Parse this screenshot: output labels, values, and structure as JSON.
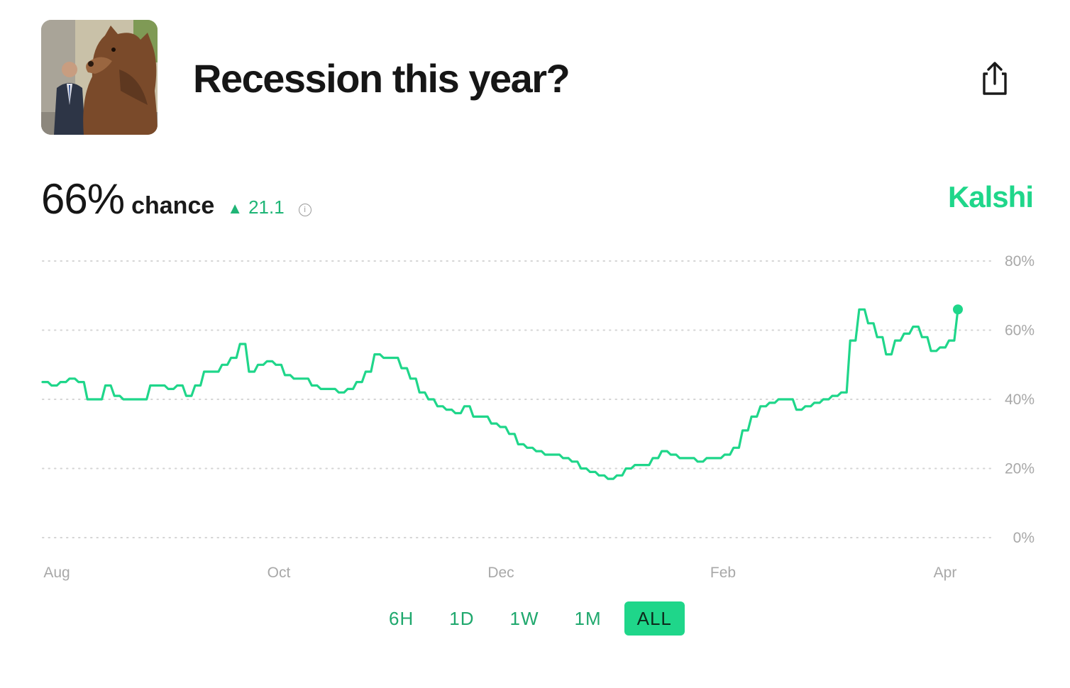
{
  "header": {
    "title": "Recession this year?",
    "thumbnail_icon": "bear-statue-photo",
    "share_icon": "share-icon"
  },
  "summary": {
    "probability": "66%",
    "chance_label": "chance",
    "delta_icon": "triangle-up-icon",
    "delta_value": "21.1",
    "info_icon": "info-icon",
    "brand": "Kalshi",
    "accent_color": "#1fd68a"
  },
  "tabs": [
    {
      "label": "6H",
      "active": false
    },
    {
      "label": "1D",
      "active": false
    },
    {
      "label": "1W",
      "active": false
    },
    {
      "label": "1M",
      "active": false
    },
    {
      "label": "ALL",
      "active": true
    }
  ],
  "chart_data": {
    "type": "line",
    "title": "",
    "xlabel": "",
    "ylabel": "",
    "ylim": [
      0,
      80
    ],
    "y_ticks": [
      80,
      60,
      40,
      20,
      0
    ],
    "y_tick_labels": [
      "80%",
      "60%",
      "40%",
      "20%",
      "0%"
    ],
    "x_tick_labels": [
      "Aug",
      "Oct",
      "Dec",
      "Feb",
      "Apr"
    ],
    "grid": true,
    "color": "#1fd68a",
    "series": [
      {
        "values": [
          45,
          44,
          45,
          46,
          45,
          40,
          40,
          44,
          41,
          40,
          40,
          40,
          44,
          44,
          43,
          44,
          41,
          44,
          48,
          48,
          50,
          52,
          56,
          48,
          50,
          51,
          50,
          47,
          46,
          46,
          44,
          43,
          43,
          42,
          43,
          45,
          48,
          53,
          52,
          52,
          49,
          46,
          42,
          40,
          38,
          37,
          36,
          38,
          35,
          35,
          33,
          32,
          30,
          27,
          26,
          25,
          24,
          24,
          23,
          22,
          20,
          19,
          18,
          17,
          18,
          20,
          21,
          21,
          23,
          25,
          24,
          23,
          23,
          22,
          23,
          23,
          24,
          26,
          31,
          35,
          38,
          39,
          40,
          40,
          37,
          38,
          39,
          40,
          41,
          42,
          57,
          66,
          62,
          58,
          53,
          57,
          59,
          61,
          58,
          54,
          55,
          57,
          66
        ]
      }
    ]
  }
}
